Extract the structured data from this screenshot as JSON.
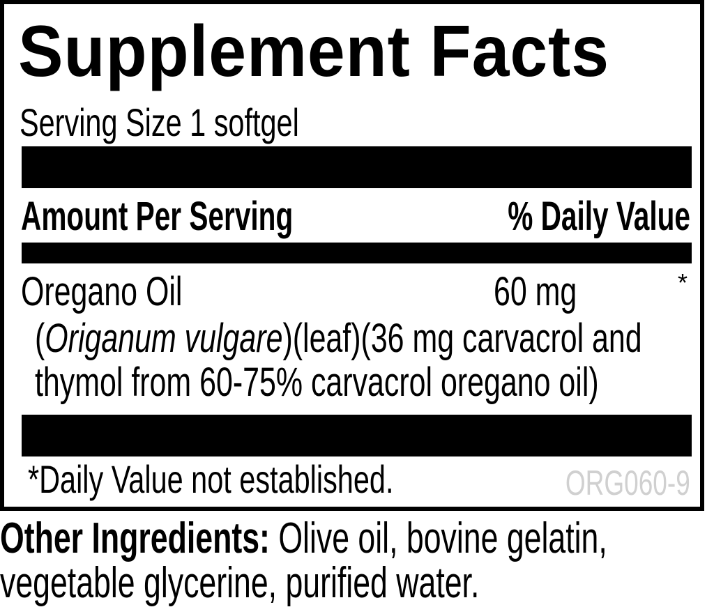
{
  "label": {
    "title": "Supplement Facts",
    "serving_size": "Serving Size 1 softgel",
    "header_amount": "Amount Per Serving",
    "header_dv": "% Daily Value",
    "ingredient": {
      "name": "Oregano Oil",
      "amount": "60 mg",
      "dv": "*",
      "desc_open": "(",
      "desc_latin": "Origanum vulgare",
      "desc_rest": ")(leaf)(36 mg carvacrol and",
      "desc_line2": "thymol from 60-75% carvacrol oregano oil)"
    },
    "footnote": "*Daily Value not established.",
    "code": "ORG060-9"
  },
  "other_ingredients": {
    "label": "Other Ingredients:",
    "line1": " Olive oil, bovine gelatin,",
    "line2": "vegetable glycerine, purified water."
  }
}
